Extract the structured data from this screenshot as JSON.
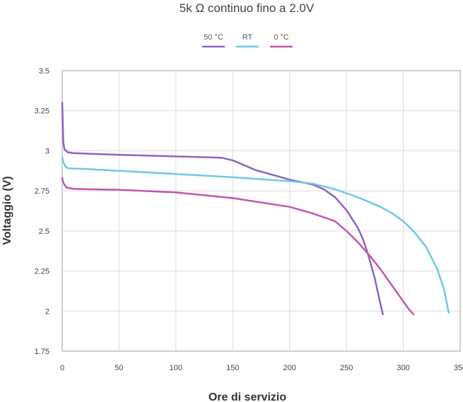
{
  "chart_data": {
    "type": "line",
    "title": "5k Ω continuo fino a 2.0V",
    "xlabel": "Ore di servizio",
    "ylabel": "Voltaggio (V)",
    "xlim": [
      0,
      350
    ],
    "ylim": [
      1.75,
      3.5
    ],
    "xticks": [
      "0",
      "50",
      "100",
      "150",
      "200",
      "250",
      "300",
      "350"
    ],
    "yticks": [
      "1.75",
      "2",
      "2.25",
      "2.5",
      "2.75",
      "3",
      "3.25",
      "3.5"
    ],
    "grid": true,
    "legend_position": "top-center",
    "series": [
      {
        "name": "50 °C",
        "color": "#8c64bf",
        "points": [
          [
            0,
            3.3
          ],
          [
            1,
            3.05
          ],
          [
            2,
            3.01
          ],
          [
            5,
            2.99
          ],
          [
            10,
            2.985
          ],
          [
            50,
            2.975
          ],
          [
            100,
            2.965
          ],
          [
            140,
            2.957
          ],
          [
            150,
            2.94
          ],
          [
            160,
            2.91
          ],
          [
            170,
            2.88
          ],
          [
            180,
            2.86
          ],
          [
            190,
            2.84
          ],
          [
            200,
            2.82
          ],
          [
            210,
            2.805
          ],
          [
            220,
            2.79
          ],
          [
            230,
            2.76
          ],
          [
            240,
            2.71
          ],
          [
            250,
            2.63
          ],
          [
            260,
            2.52
          ],
          [
            265,
            2.44
          ],
          [
            270,
            2.33
          ],
          [
            275,
            2.2
          ],
          [
            280,
            2.04
          ],
          [
            282,
            1.98
          ]
        ]
      },
      {
        "name": "RT",
        "color": "#6ec9e6",
        "points": [
          [
            0,
            2.96
          ],
          [
            1,
            2.93
          ],
          [
            3,
            2.9
          ],
          [
            6,
            2.89
          ],
          [
            20,
            2.887
          ],
          [
            50,
            2.875
          ],
          [
            100,
            2.855
          ],
          [
            150,
            2.835
          ],
          [
            200,
            2.81
          ],
          [
            220,
            2.795
          ],
          [
            240,
            2.76
          ],
          [
            260,
            2.71
          ],
          [
            280,
            2.65
          ],
          [
            290,
            2.61
          ],
          [
            300,
            2.56
          ],
          [
            310,
            2.49
          ],
          [
            320,
            2.4
          ],
          [
            330,
            2.26
          ],
          [
            336,
            2.13
          ],
          [
            339,
            2.02
          ],
          [
            340,
            1.99
          ]
        ]
      },
      {
        "name": "0 °C",
        "color": "#c356ad",
        "points": [
          [
            0,
            2.83
          ],
          [
            1,
            2.8
          ],
          [
            4,
            2.77
          ],
          [
            10,
            2.762
          ],
          [
            50,
            2.757
          ],
          [
            100,
            2.74
          ],
          [
            150,
            2.705
          ],
          [
            200,
            2.65
          ],
          [
            220,
            2.61
          ],
          [
            240,
            2.56
          ],
          [
            250,
            2.5
          ],
          [
            260,
            2.43
          ],
          [
            270,
            2.35
          ],
          [
            280,
            2.26
          ],
          [
            290,
            2.16
          ],
          [
            300,
            2.06
          ],
          [
            305,
            2.01
          ],
          [
            309,
            1.98
          ]
        ]
      }
    ]
  }
}
